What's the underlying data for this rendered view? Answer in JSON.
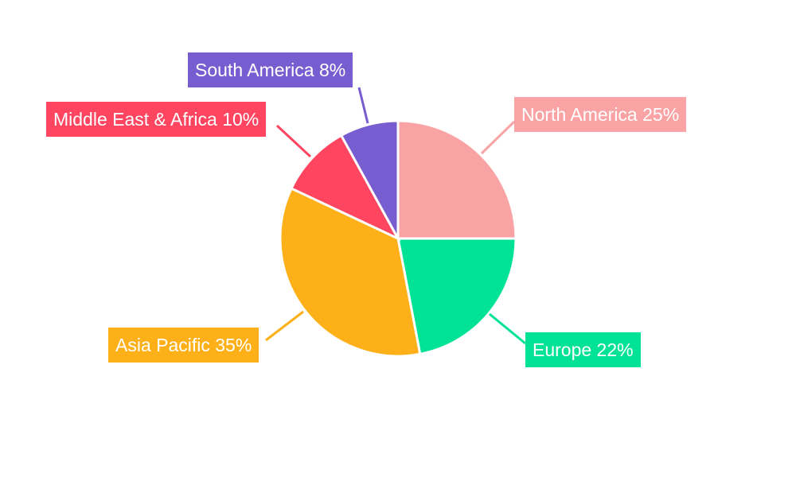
{
  "chart_data": {
    "type": "pie",
    "title": "",
    "start_angle": "top, clockwise",
    "slices": [
      {
        "label": "North America 25%",
        "name": "North America",
        "value": 25,
        "color": "#F9A3A4"
      },
      {
        "label": "Europe 22%",
        "name": "Europe",
        "value": 22,
        "color": "#00E396"
      },
      {
        "label": "Asia Pacific 35%",
        "name": "Asia Pacific",
        "value": 35,
        "color": "#FEB019"
      },
      {
        "label": "Middle East & Africa 10%",
        "name": "Middle East & Africa",
        "value": 10,
        "color": "#FF4560"
      },
      {
        "label": "South America 8%",
        "name": "South America",
        "value": 8,
        "color": "#775DD0"
      }
    ]
  }
}
